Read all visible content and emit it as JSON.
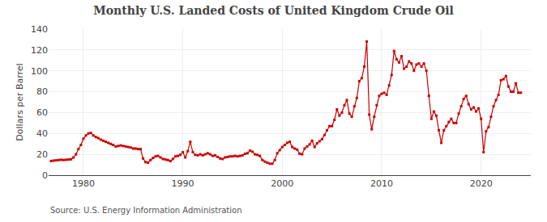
{
  "chart_data": {
    "type": "line",
    "title": "Monthly U.S. Landed Costs of United Kingdom Crude Oil",
    "ylabel": "Dollars per Barrel",
    "annotations": [
      "Source: U.S. Energy Information Administration"
    ],
    "color": "#cc0000",
    "marker": "square",
    "line_style": "solid",
    "grid": true,
    "xlim": [
      1976.5,
      2025.0
    ],
    "ylim": [
      0,
      140
    ],
    "xticks": [
      1980,
      1990,
      2000,
      2010,
      2020
    ],
    "yticks": [
      0,
      20,
      40,
      60,
      80,
      100,
      120,
      140
    ],
    "x": [
      1976.75,
      1977.0,
      1977.25,
      1977.5,
      1977.75,
      1978.0,
      1978.25,
      1978.5,
      1978.75,
      1979.0,
      1979.25,
      1979.5,
      1979.75,
      1980.0,
      1980.25,
      1980.5,
      1980.75,
      1981.0,
      1981.25,
      1981.5,
      1981.75,
      1982.0,
      1982.25,
      1982.5,
      1982.75,
      1983.0,
      1983.25,
      1983.5,
      1983.75,
      1984.0,
      1984.25,
      1984.5,
      1984.75,
      1985.0,
      1985.25,
      1985.5,
      1985.75,
      1986.0,
      1986.25,
      1986.5,
      1986.75,
      1987.0,
      1987.25,
      1987.5,
      1987.75,
      1988.0,
      1988.25,
      1988.5,
      1988.75,
      1989.0,
      1989.25,
      1989.5,
      1989.75,
      1990.0,
      1990.25,
      1990.5,
      1990.75,
      1991.0,
      1991.25,
      1991.5,
      1991.75,
      1992.0,
      1992.25,
      1992.5,
      1992.75,
      1993.0,
      1993.25,
      1993.5,
      1993.75,
      1994.0,
      1994.25,
      1994.5,
      1994.75,
      1995.0,
      1995.25,
      1995.5,
      1995.75,
      1996.0,
      1996.25,
      1996.5,
      1996.75,
      1997.0,
      1997.25,
      1997.5,
      1997.75,
      1998.0,
      1998.25,
      1998.5,
      1998.75,
      1999.0,
      1999.25,
      1999.5,
      1999.75,
      2000.0,
      2000.25,
      2000.5,
      2000.75,
      2001.0,
      2001.25,
      2001.5,
      2001.75,
      2002.0,
      2002.25,
      2002.5,
      2002.75,
      2003.0,
      2003.25,
      2003.5,
      2003.75,
      2004.0,
      2004.25,
      2004.5,
      2004.75,
      2005.0,
      2005.25,
      2005.5,
      2005.75,
      2006.0,
      2006.25,
      2006.5,
      2006.75,
      2007.0,
      2007.25,
      2007.5,
      2007.75,
      2008.0,
      2008.25,
      2008.5,
      2008.75,
      2009.0,
      2009.25,
      2009.5,
      2009.75,
      2010.0,
      2010.25,
      2010.5,
      2010.75,
      2011.0,
      2011.25,
      2011.5,
      2011.75,
      2012.0,
      2012.25,
      2012.5,
      2012.75,
      2013.0,
      2013.25,
      2013.5,
      2013.75,
      2014.0,
      2014.25,
      2014.5,
      2014.75,
      2015.0,
      2015.25,
      2015.5,
      2015.75,
      2016.0,
      2016.25,
      2016.5,
      2016.75,
      2017.0,
      2017.25,
      2017.5,
      2017.75,
      2018.0,
      2018.25,
      2018.5,
      2018.75,
      2019.0,
      2019.25,
      2019.5,
      2019.75,
      2020.0,
      2020.25,
      2020.5,
      2020.75,
      2021.0,
      2021.25,
      2021.5,
      2021.75,
      2022.0,
      2022.25,
      2022.5,
      2022.75,
      2023.0,
      2023.25,
      2023.5,
      2023.75,
      2024.0
    ],
    "values": [
      13.5,
      14.0,
      14.2,
      14.5,
      14.8,
      14.5,
      14.8,
      15.0,
      15.2,
      17.0,
      20.0,
      25.0,
      29.0,
      35.0,
      38.0,
      40.0,
      40.5,
      38.0,
      36.5,
      35.5,
      34.0,
      33.0,
      32.0,
      31.0,
      30.0,
      29.0,
      27.5,
      28.0,
      28.5,
      28.0,
      27.5,
      27.0,
      26.5,
      25.5,
      25.5,
      25.0,
      25.0,
      16.0,
      12.5,
      12.0,
      14.5,
      16.5,
      18.0,
      18.5,
      17.0,
      15.5,
      15.0,
      14.5,
      13.5,
      15.5,
      18.0,
      18.5,
      19.5,
      22.0,
      17.0,
      23.0,
      32.0,
      22.0,
      19.5,
      19.0,
      20.0,
      19.0,
      20.0,
      21.0,
      20.0,
      18.5,
      19.0,
      17.5,
      16.0,
      15.5,
      17.0,
      17.5,
      18.0,
      18.0,
      18.5,
      18.0,
      18.5,
      19.0,
      20.5,
      21.0,
      23.5,
      22.5,
      20.0,
      19.5,
      18.5,
      14.5,
      13.0,
      12.0,
      11.0,
      11.0,
      14.5,
      21.0,
      24.0,
      27.0,
      29.0,
      31.0,
      32.0,
      27.0,
      25.5,
      24.5,
      20.5,
      20.0,
      25.5,
      27.5,
      29.5,
      33.0,
      27.0,
      30.5,
      32.5,
      34.5,
      38.5,
      43.0,
      47.0,
      47.0,
      53.0,
      63.0,
      57.0,
      60.0,
      67.0,
      72.0,
      59.0,
      56.0,
      66.0,
      74.0,
      90.0,
      93.0,
      104.0,
      128.0,
      58.0,
      44.0,
      56.0,
      67.0,
      76.0,
      78.0,
      79.0,
      77.0,
      86.0,
      96.0,
      119.0,
      111.0,
      108.0,
      114.0,
      102.0,
      104.0,
      109.0,
      107.0,
      100.0,
      106.0,
      107.0,
      104.0,
      107.0,
      100.0,
      76.0,
      54.0,
      61.0,
      57.0,
      43.0,
      31.0,
      43.0,
      47.0,
      51.0,
      54.0,
      50.0,
      50.0,
      59.0,
      66.0,
      73.0,
      76.0,
      68.0,
      63.0,
      65.0,
      61.0,
      64.0,
      54.0,
      22.0,
      42.0,
      46.0,
      56.0,
      66.0,
      72.0,
      77.0,
      91.0,
      92.0,
      95.0,
      85.0,
      80.0,
      80.0,
      88.0,
      79.0,
      79.0
    ]
  }
}
